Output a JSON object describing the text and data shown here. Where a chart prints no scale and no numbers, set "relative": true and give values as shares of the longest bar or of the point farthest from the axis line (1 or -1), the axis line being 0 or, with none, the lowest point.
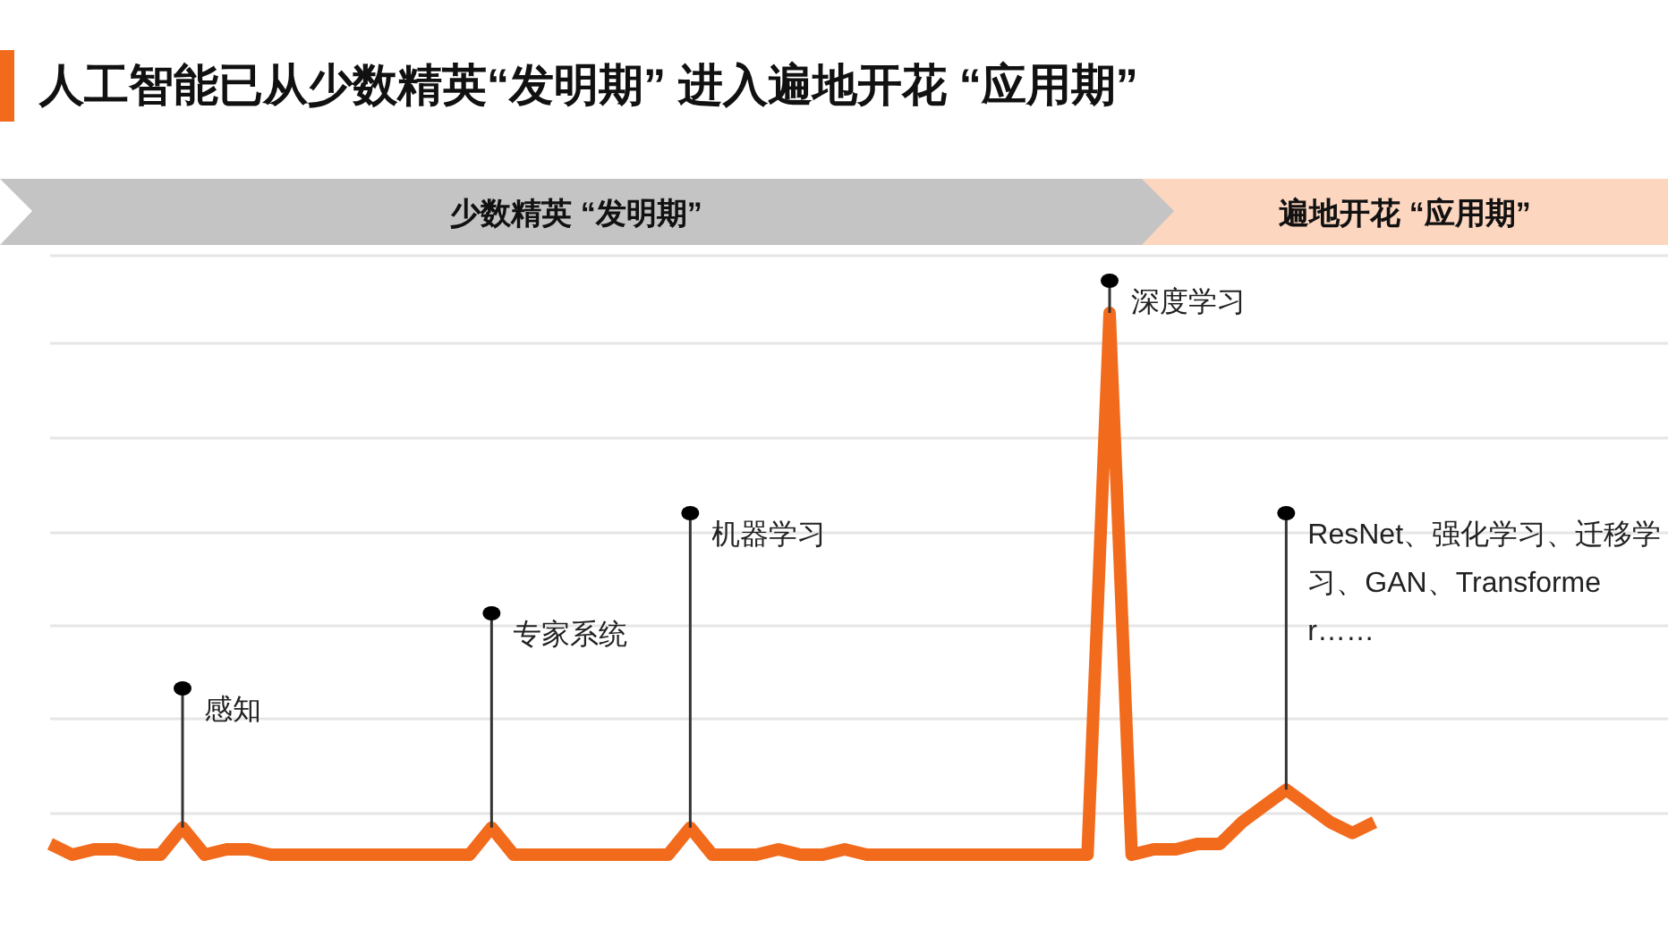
{
  "chart_data": {
    "type": "line",
    "title": "人工智能已从少数精英“发明期” 进入遍地开花 “应用期”",
    "relative": true,
    "grid": true,
    "marker": "none",
    "categories": [
      null,
      null,
      null,
      null,
      null,
      null,
      null,
      null,
      null,
      null,
      null,
      null,
      null,
      null,
      null,
      null,
      null,
      null,
      null,
      null,
      null,
      null,
      null,
      null,
      null,
      null,
      null,
      null,
      null,
      null,
      null,
      null,
      null,
      null,
      null,
      null,
      null,
      null,
      null,
      null,
      null,
      null,
      null,
      null,
      null,
      null,
      null,
      null,
      null,
      null,
      null,
      null,
      null,
      null,
      null,
      null,
      null,
      null,
      null,
      null,
      null
    ],
    "series": [
      {
        "color": "#f26b1d",
        "values": [
          0.02,
          0,
          0.01,
          0.01,
          0,
          0,
          0.05,
          0,
          0.01,
          0.01,
          0,
          0,
          0,
          0,
          0,
          0,
          0,
          0,
          0,
          0,
          0.05,
          0,
          0,
          0,
          0,
          0,
          0,
          0,
          0,
          0.05,
          0,
          0,
          0,
          0.01,
          0,
          0,
          0.01,
          0,
          0,
          0,
          0,
          0,
          0,
          0,
          0,
          0,
          0,
          0,
          1,
          0,
          0.01,
          0.01,
          0.02,
          0.02,
          0.06,
          0.09,
          0.12,
          0.09,
          0.06,
          0.04,
          0.06
        ]
      }
    ],
    "annotations": [
      "少数精英 “发明期”",
      "遍地开花 “应用期”",
      "感知",
      "专家系统",
      "机器学习",
      "深度学习",
      "ResNet、强化学习、迁移学习、GAN、Transformer……"
    ]
  }
}
